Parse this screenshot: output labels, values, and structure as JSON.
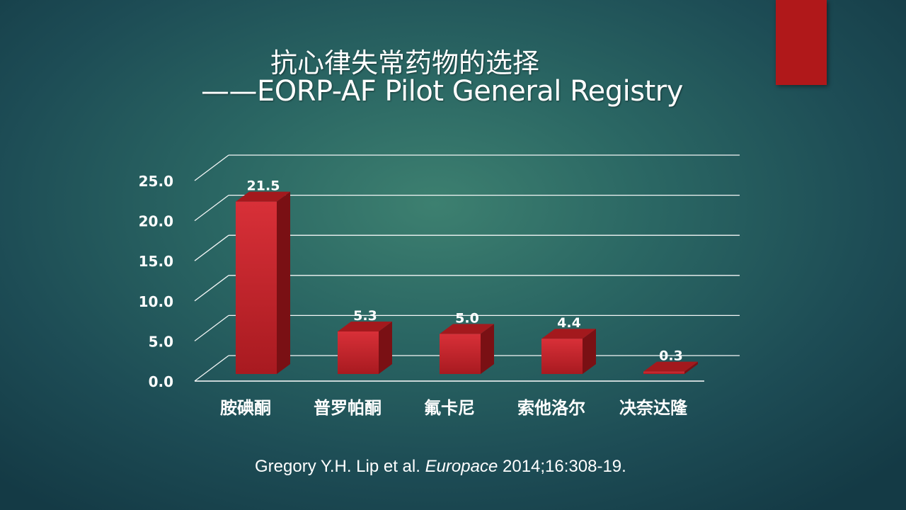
{
  "slide": {
    "title_cn": "抗心律失常药物的选择",
    "title_en": "——EORP-AF Pilot General Registry",
    "citation": {
      "authors": "Gregory Y.H. Lip et al.",
      "journal": "Europace",
      "details": "2014;16:308-19."
    }
  },
  "colors": {
    "accent": "#b0181a",
    "bar_front": "#c8222a",
    "bar_side": "#7a1014",
    "bar_top": "#a3191d",
    "grid": "#ffffff",
    "text": "#ffffff"
  },
  "chart_data": {
    "type": "bar",
    "style": "3d-column",
    "categories": [
      "胺碘酮",
      "普罗帕酮",
      "氟卡尼",
      "索他洛尔",
      "决奈达隆"
    ],
    "values": [
      21.5,
      5.3,
      5.0,
      4.4,
      0.3
    ],
    "data_labels": [
      "21.5",
      "5.3",
      "5.0",
      "4.4",
      "0.3"
    ],
    "yticks": [
      "0.0",
      "5.0",
      "10.0",
      "15.0",
      "20.0",
      "25.0"
    ],
    "ylim": [
      0,
      25
    ],
    "grid": true,
    "legend": "none"
  }
}
